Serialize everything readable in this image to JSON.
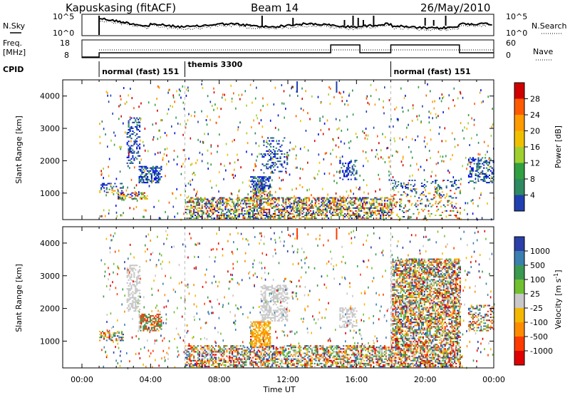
{
  "header": {
    "station": "Kapuskasing (fitACF)",
    "beam": "Beam 14",
    "date": "26/May/2010"
  },
  "top_panel": {
    "nsky_label": "N.Sky",
    "nsearch_label": "N.Search",
    "y_ticks": [
      "10^5",
      "10^0"
    ],
    "right_ticks": [
      "10^5",
      "10^0"
    ],
    "freq_label_1": "Freq.",
    "freq_label_2": "[MHz]",
    "freq_ticks": [
      "18",
      "8"
    ],
    "nave_ticks": [
      "60",
      "0"
    ],
    "nave_label": "Nave",
    "cpid_label": "CPID",
    "cpid_segments": [
      {
        "label": "normal (fast) 151",
        "start": 1.0,
        "end": 6.0
      },
      {
        "label": "themis 3300",
        "start": 6.0,
        "end": 18.0
      },
      {
        "label": "normal (fast) 151",
        "start": 18.0,
        "end": 24.0
      }
    ]
  },
  "axes": {
    "xlabel": "Time UT",
    "x_ticks": [
      "00:00",
      "04:00",
      "08:00",
      "12:00",
      "16:00",
      "20:00",
      "00:00"
    ],
    "ylabel_power": "Slant Range [km]",
    "ylabel_velocity": "Slant Range [km]",
    "y_ticks": [
      "1000",
      "2000",
      "3000",
      "4000"
    ]
  },
  "colorbars": {
    "power": {
      "label": "Power [dB]",
      "ticks": [
        "28",
        "24",
        "20",
        "16",
        "12",
        "8",
        "4"
      ],
      "colors": [
        "#d00000",
        "#ff5a00",
        "#ff9a00",
        "#f0c000",
        "#a0d030",
        "#30a040",
        "#2e8a60",
        "#2040b0",
        "#0010e0"
      ]
    },
    "velocity": {
      "label_main": "Velocity  [m s",
      "label_sup": "-1",
      "label_end": "]",
      "ticks": [
        "1000",
        "500",
        "100",
        "25",
        "-25",
        "-100",
        "-500",
        "-1000"
      ],
      "colors": [
        "#2b3fa8",
        "#3a7fb0",
        "#3a9a50",
        "#70c030",
        "#c8c8c8",
        "#f5b800",
        "#ff8c00",
        "#ff3a00",
        "#e00000"
      ]
    }
  },
  "chart_data": [
    {
      "type": "heatmap",
      "title": "Kapuskasing (fitACF)",
      "xlabel": "Time UT",
      "ylabel": "Slant Range [km]",
      "colorbar_label": "Power [dB]",
      "xlim": [
        0,
        24
      ],
      "ylim": [
        180,
        4500
      ],
      "regions": [
        {
          "t0": 1.0,
          "t1": 2.4,
          "r0": 1000,
          "r1": 1300,
          "level": 0.35
        },
        {
          "t0": 2.6,
          "t1": 3.4,
          "r0": 1900,
          "r1": 3300,
          "level": 0.3
        },
        {
          "t0": 3.3,
          "t1": 4.6,
          "r0": 1300,
          "r1": 1800,
          "level": 0.6
        },
        {
          "t0": 2.0,
          "t1": 3.8,
          "r0": 800,
          "r1": 1000,
          "level": 0.45
        },
        {
          "t0": 6.0,
          "t1": 18.0,
          "r0": 200,
          "r1": 850,
          "level": 0.5
        },
        {
          "t0": 9.8,
          "t1": 11.0,
          "r0": 800,
          "r1": 1500,
          "level": 0.55
        },
        {
          "t0": 10.4,
          "t1": 12.0,
          "r0": 1600,
          "r1": 2700,
          "level": 0.2
        },
        {
          "t0": 15.0,
          "t1": 16.0,
          "r0": 1400,
          "r1": 2000,
          "level": 0.25
        },
        {
          "t0": 18.0,
          "t1": 22.0,
          "r0": 200,
          "r1": 1400,
          "level": 0.15
        },
        {
          "t0": 22.5,
          "t1": 24.0,
          "r0": 1300,
          "r1": 2100,
          "level": 0.3
        }
      ]
    },
    {
      "type": "heatmap",
      "xlabel": "Time UT",
      "ylabel": "Slant Range [km]",
      "colorbar_label": "Velocity [m s^-1]",
      "xlim": [
        0,
        24
      ],
      "ylim": [
        180,
        4500
      ],
      "regions": [
        {
          "t0": 1.0,
          "t1": 2.4,
          "r0": 1000,
          "r1": 1300,
          "level": 0.45
        },
        {
          "t0": 2.6,
          "t1": 3.4,
          "r0": 1900,
          "r1": 3300,
          "level": 0.45
        },
        {
          "t0": 3.3,
          "t1": 4.6,
          "r0": 1300,
          "r1": 1800,
          "level": 0.6
        },
        {
          "t0": 6.0,
          "t1": 18.0,
          "r0": 200,
          "r1": 850,
          "level": 0.5
        },
        {
          "t0": 9.8,
          "t1": 11.0,
          "r0": 800,
          "r1": 1600,
          "level": 0.65
        },
        {
          "t0": 10.4,
          "t1": 12.0,
          "r0": 1600,
          "r1": 2700,
          "level": 0.45
        },
        {
          "t0": 15.0,
          "t1": 16.0,
          "r0": 1400,
          "r1": 2000,
          "level": 0.45
        },
        {
          "t0": 18.0,
          "t1": 22.0,
          "r0": 200,
          "r1": 3500,
          "level": 0.6
        },
        {
          "t0": 22.5,
          "t1": 24.0,
          "r0": 1300,
          "r1": 2100,
          "level": 0.3
        }
      ]
    }
  ]
}
